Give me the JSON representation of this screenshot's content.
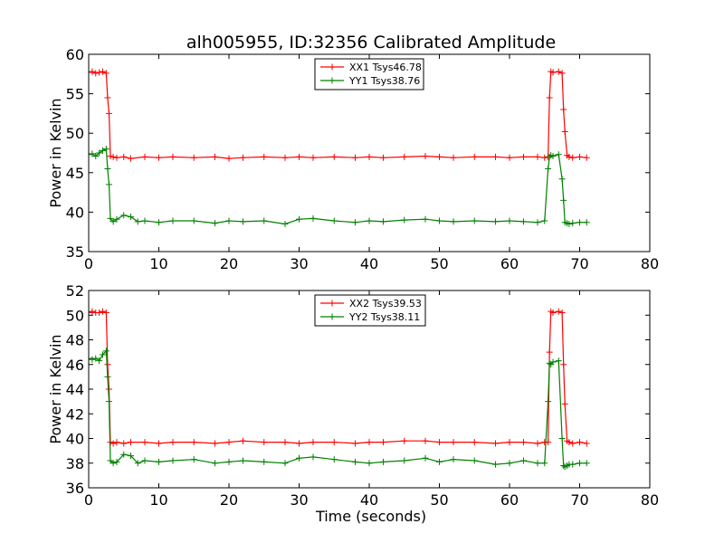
{
  "figure_title": "alh005955, ID:32356 Calibrated Amplitude",
  "chart_data": [
    {
      "type": "line",
      "title": "alh005955, ID:32356 Calibrated Amplitude",
      "xlabel": "",
      "ylabel": "Power in Kelvin",
      "xlim": [
        0,
        80
      ],
      "ylim": [
        35,
        60
      ],
      "xticks": [
        "0",
        "10",
        "20",
        "30",
        "40",
        "50",
        "60",
        "70",
        "80"
      ],
      "yticks": [
        "35",
        "40",
        "45",
        "50",
        "55",
        "60"
      ],
      "legend_position": "top-center",
      "series": [
        {
          "name": "XX1 Tsys46.78",
          "color": "#ff0000",
          "x": [
            0.0,
            0.5,
            1.0,
            1.5,
            2.0,
            2.5,
            2.7,
            2.9,
            3.1,
            3.5,
            4.0,
            5.0,
            6.0,
            8.0,
            10.0,
            12.0,
            15.0,
            18.0,
            20.0,
            22.0,
            25.0,
            28.0,
            30.0,
            32.0,
            35.0,
            38.0,
            40.0,
            42.0,
            45.0,
            48.0,
            50.0,
            52.0,
            55.0,
            58.0,
            60.0,
            62.0,
            64.0,
            65.0,
            65.5,
            65.7,
            65.9,
            66.2,
            67.0,
            67.5,
            67.7,
            67.9,
            68.2,
            68.5,
            69.0,
            70.0,
            71.0
          ],
          "y": [
            57.7,
            57.8,
            57.6,
            57.7,
            57.8,
            57.6,
            54.5,
            52.5,
            47.1,
            47.0,
            46.9,
            47.0,
            46.8,
            47.0,
            46.9,
            47.0,
            46.9,
            47.0,
            46.8,
            46.9,
            47.0,
            46.9,
            47.0,
            46.9,
            47.0,
            46.9,
            47.0,
            46.9,
            47.0,
            47.1,
            47.0,
            46.9,
            47.0,
            47.0,
            46.9,
            47.0,
            47.0,
            46.9,
            47.0,
            54.5,
            57.8,
            57.7,
            57.8,
            57.6,
            53.0,
            50.2,
            47.2,
            47.0,
            46.9,
            47.0,
            46.9
          ]
        },
        {
          "name": "YY1 Tsys38.76",
          "color": "#008000",
          "x": [
            0.0,
            0.5,
            1.0,
            1.5,
            2.0,
            2.5,
            2.7,
            2.9,
            3.1,
            3.5,
            4.0,
            5.0,
            6.0,
            7.0,
            8.0,
            10.0,
            12.0,
            15.0,
            18.0,
            20.0,
            22.0,
            25.0,
            28.0,
            30.0,
            32.0,
            35.0,
            38.0,
            40.0,
            42.0,
            45.0,
            48.0,
            50.0,
            52.0,
            55.0,
            58.0,
            60.0,
            62.0,
            64.0,
            65.0,
            65.5,
            65.7,
            65.9,
            66.2,
            67.0,
            67.5,
            67.7,
            67.9,
            68.2,
            68.5,
            69.0,
            70.0,
            71.0
          ],
          "y": [
            47.3,
            47.4,
            47.1,
            47.5,
            47.8,
            48.0,
            45.5,
            43.5,
            39.2,
            38.8,
            39.1,
            39.6,
            39.4,
            38.8,
            38.9,
            38.7,
            38.9,
            38.9,
            38.6,
            38.9,
            38.8,
            38.9,
            38.5,
            39.1,
            39.2,
            38.9,
            38.7,
            38.9,
            38.8,
            39.0,
            39.1,
            38.9,
            38.8,
            38.9,
            38.8,
            38.9,
            38.8,
            38.7,
            38.9,
            45.5,
            47.0,
            47.2,
            47.1,
            47.3,
            44.2,
            41.5,
            38.7,
            38.6,
            38.5,
            38.6,
            38.7,
            38.7
          ]
        }
      ]
    },
    {
      "type": "line",
      "title": "",
      "xlabel": "Time (seconds)",
      "ylabel": "Power in Kelvin",
      "xlim": [
        0,
        80
      ],
      "ylim": [
        36,
        52
      ],
      "xticks": [
        "0",
        "10",
        "20",
        "30",
        "40",
        "50",
        "60",
        "70",
        "80"
      ],
      "yticks": [
        "36",
        "38",
        "40",
        "42",
        "44",
        "46",
        "48",
        "50",
        "52"
      ],
      "legend_position": "top-center",
      "series": [
        {
          "name": "XX2 Tsys39.53",
          "color": "#ff0000",
          "x": [
            0.0,
            0.5,
            1.0,
            1.5,
            2.0,
            2.5,
            2.7,
            2.9,
            3.1,
            3.5,
            4.0,
            5.0,
            6.0,
            8.0,
            10.0,
            12.0,
            15.0,
            18.0,
            20.0,
            22.0,
            25.0,
            28.0,
            30.0,
            32.0,
            35.0,
            38.0,
            40.0,
            42.0,
            45.0,
            48.0,
            50.0,
            52.0,
            55.0,
            58.0,
            60.0,
            62.0,
            64.0,
            65.0,
            65.5,
            65.7,
            65.9,
            66.2,
            67.0,
            67.5,
            67.7,
            67.9,
            68.2,
            68.5,
            69.0,
            70.0,
            71.0
          ],
          "y": [
            50.2,
            50.3,
            50.2,
            50.2,
            50.3,
            50.2,
            46.0,
            44.0,
            39.7,
            39.6,
            39.7,
            39.6,
            39.7,
            39.7,
            39.6,
            39.7,
            39.7,
            39.6,
            39.7,
            39.8,
            39.7,
            39.7,
            39.6,
            39.7,
            39.7,
            39.6,
            39.7,
            39.7,
            39.8,
            39.8,
            39.7,
            39.7,
            39.7,
            39.6,
            39.7,
            39.7,
            39.6,
            39.7,
            39.7,
            47.0,
            50.3,
            50.2,
            50.3,
            50.2,
            46.0,
            42.8,
            39.8,
            39.7,
            39.6,
            39.7,
            39.6
          ]
        },
        {
          "name": "YY2 Tsys38.11",
          "color": "#008000",
          "x": [
            0.0,
            0.5,
            1.0,
            1.5,
            2.0,
            2.5,
            2.7,
            2.9,
            3.1,
            3.5,
            4.0,
            5.0,
            6.0,
            7.0,
            8.0,
            10.0,
            12.0,
            15.0,
            18.0,
            20.0,
            22.0,
            25.0,
            28.0,
            30.0,
            32.0,
            35.0,
            38.0,
            40.0,
            42.0,
            45.0,
            48.0,
            50.0,
            52.0,
            55.0,
            58.0,
            60.0,
            62.0,
            64.0,
            65.0,
            65.5,
            65.7,
            65.9,
            66.2,
            67.0,
            67.5,
            67.7,
            67.9,
            68.2,
            68.5,
            69.0,
            70.0,
            71.0
          ],
          "y": [
            46.5,
            46.4,
            46.5,
            46.3,
            46.8,
            47.1,
            45.0,
            43.0,
            38.2,
            38.0,
            38.1,
            38.7,
            38.6,
            38.0,
            38.2,
            38.1,
            38.2,
            38.3,
            38.0,
            38.1,
            38.2,
            38.1,
            38.0,
            38.4,
            38.5,
            38.3,
            38.1,
            38.0,
            38.1,
            38.2,
            38.4,
            38.1,
            38.3,
            38.2,
            37.9,
            38.0,
            38.2,
            38.0,
            38.0,
            43.0,
            46.1,
            46.0,
            46.2,
            46.3,
            40.0,
            37.8,
            37.7,
            37.8,
            37.9,
            37.9,
            38.0,
            38.0
          ]
        }
      ]
    }
  ]
}
